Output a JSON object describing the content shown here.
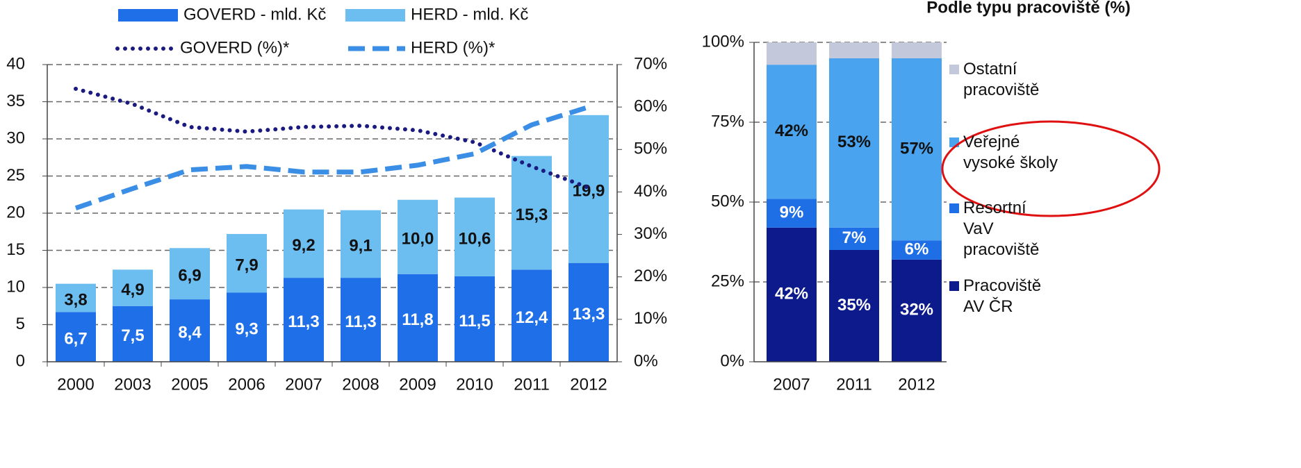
{
  "chart_data": [
    {
      "type": "bar",
      "categories": [
        "2000",
        "2003",
        "2005",
        "2006",
        "2007",
        "2008",
        "2009",
        "2010",
        "2011",
        "2012"
      ],
      "series": [
        {
          "name": "GOVERD - mld. Kč",
          "type": "bar",
          "color": "#1f6fe8",
          "label_color": "#ffffff",
          "values": [
            6.7,
            7.5,
            8.4,
            9.3,
            11.3,
            11.3,
            11.8,
            11.5,
            12.4,
            13.3
          ],
          "value_labels": [
            "6,7",
            "7,5",
            "8,4",
            "9,3",
            "11,3",
            "11,3",
            "11,8",
            "11,5",
            "12,4",
            "13,3"
          ]
        },
        {
          "name": "HERD - mld. Kč",
          "type": "bar",
          "color": "#6cbdf0",
          "label_color": "#111111",
          "values": [
            3.8,
            4.9,
            6.9,
            7.9,
            9.2,
            9.1,
            10.0,
            10.6,
            15.3,
            19.9
          ],
          "value_labels": [
            "3,8",
            "4,9",
            "6,9",
            "7,9",
            "9,2",
            "9,1",
            "10,0",
            "10,6",
            "15,3",
            "19,9"
          ]
        },
        {
          "name": "GOVERD (%)*",
          "type": "line",
          "style": "dotted",
          "axis": "y2",
          "color": "#1a1a80",
          "values": [
            64.3,
            60.7,
            55.3,
            54.2,
            55.3,
            55.6,
            54.5,
            51.7,
            46,
            41
          ]
        },
        {
          "name": "HERD (%)*",
          "type": "line",
          "style": "dashed",
          "axis": "y2",
          "color": "#3a8ee6",
          "values": [
            36.2,
            40.8,
            45.2,
            46,
            44.7,
            44.7,
            46.3,
            49,
            55.8,
            60
          ]
        }
      ],
      "ylim": [
        0,
        40
      ],
      "yticks": [
        0,
        5,
        10,
        15,
        20,
        25,
        30,
        35,
        40
      ],
      "y2lim": [
        0,
        70
      ],
      "y2ticks": [
        {
          "value": 0,
          "label": "0%"
        },
        {
          "value": 10,
          "label": "10%"
        },
        {
          "value": 20,
          "label": "20%"
        },
        {
          "value": 30,
          "label": "30%"
        },
        {
          "value": 40,
          "label": "40%"
        },
        {
          "value": 50,
          "label": "50%"
        },
        {
          "value": 60,
          "label": "60%"
        },
        {
          "value": 70,
          "label": "70%"
        }
      ],
      "grid": true
    },
    {
      "type": "stacked_bar",
      "title": "Podle typu pracoviště (%)",
      "categories": [
        "2007",
        "2011",
        "2012"
      ],
      "series": [
        {
          "name": "Pracoviště\nAV ČR",
          "color": "#0d1a8c",
          "label_color": "#ffffff",
          "values": [
            42,
            35,
            32
          ],
          "value_labels": [
            "42%",
            "35%",
            "32%"
          ]
        },
        {
          "name": "Resortní\nVaV\npracoviště",
          "color": "#1e6ee6",
          "label_color": "#ffffff",
          "values": [
            9,
            7,
            6
          ],
          "value_labels": [
            "9%",
            "7%",
            "6%"
          ]
        },
        {
          "name": "Veřejné\nvysoké školy",
          "color": "#4aa3ee",
          "label_color": "#111111",
          "values": [
            42,
            53,
            57
          ],
          "value_labels": [
            "42%",
            "53%",
            "57%"
          ]
        },
        {
          "name": "Ostatní\npracoviště",
          "color": "#c3c8da",
          "values": [
            7,
            5,
            5
          ]
        }
      ],
      "ylim": [
        0,
        100
      ],
      "yticks": [
        {
          "value": 0,
          "label": "0%"
        },
        {
          "value": 25,
          "label": "25%"
        },
        {
          "value": 50,
          "label": "50%"
        },
        {
          "value": 75,
          "label": "75%"
        },
        {
          "value": 100,
          "label": "100%"
        }
      ],
      "grid": true
    }
  ]
}
